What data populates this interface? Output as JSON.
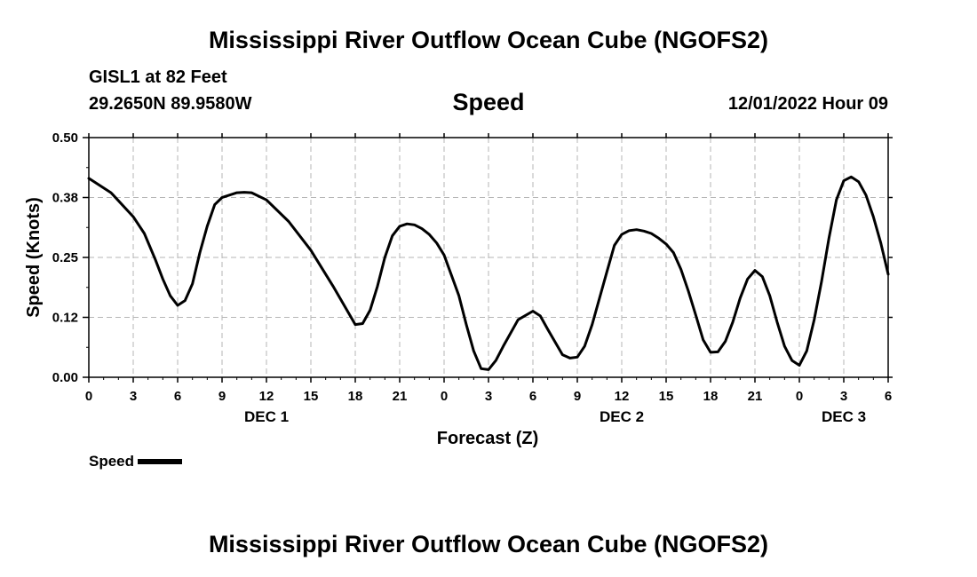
{
  "header": {
    "title": "Mississippi River Outflow Ocean Cube (NGOFS2)",
    "station": "GISL1 at 82 Feet",
    "coordinates": "29.2650N  89.9580W",
    "variable": "Speed",
    "run_time": "12/01/2022 Hour 09"
  },
  "legend": {
    "label": "Speed"
  },
  "footer": {
    "title": "Mississippi River Outflow Ocean Cube (NGOFS2)"
  },
  "chart_data": {
    "type": "line",
    "title": "Speed",
    "xlabel": "Forecast (Z)",
    "ylabel": "Speed (Knots)",
    "xlim": [
      0,
      54
    ],
    "ylim": [
      0,
      0.5
    ],
    "grid": true,
    "legend_position": "bottom-left",
    "x_ticks": [
      0,
      3,
      6,
      9,
      12,
      15,
      18,
      21,
      24,
      27,
      30,
      33,
      36,
      39,
      42,
      45,
      48,
      51,
      54
    ],
    "x_tick_labels": [
      "0",
      "3",
      "6",
      "9",
      "12",
      "15",
      "18",
      "21",
      "0",
      "3",
      "6",
      "9",
      "12",
      "15",
      "18",
      "21",
      "0",
      "3",
      "6"
    ],
    "y_ticks": [
      0,
      0.125,
      0.25,
      0.375,
      0.5
    ],
    "y_tick_labels": [
      "0.00",
      "0.12",
      "0.25",
      "0.38",
      "0.50"
    ],
    "day_labels": [
      {
        "x": 12,
        "label": "DEC 1"
      },
      {
        "x": 36,
        "label": "DEC 2"
      },
      {
        "x": 51,
        "label": "DEC 3"
      }
    ],
    "series": [
      {
        "name": "Speed",
        "color": "#000000",
        "x": [
          0,
          1.5,
          3,
          3.75,
          4.5,
          5,
          5.5,
          6,
          6.5,
          7,
          7.5,
          8,
          8.5,
          9,
          10,
          10.5,
          11,
          12,
          13.5,
          15,
          16.5,
          18,
          18.5,
          19,
          19.5,
          20,
          20.5,
          21,
          21.5,
          22,
          22.5,
          23,
          23.5,
          24,
          25,
          25.5,
          26,
          26.5,
          27,
          27.5,
          28,
          29,
          30,
          30.5,
          31,
          32,
          32.5,
          33,
          33.5,
          34,
          34.5,
          35,
          35.5,
          36,
          36.5,
          37,
          37.5,
          38,
          38.5,
          39,
          39.5,
          40,
          40.5,
          41,
          41.5,
          42,
          42.5,
          43,
          43.5,
          44,
          44.5,
          45,
          45.5,
          46,
          46.5,
          47,
          47.5,
          48,
          48.5,
          49,
          49.5,
          50,
          50.5,
          51,
          51.5,
          52,
          52.5,
          53,
          53.5,
          54
        ],
        "values": [
          0.415,
          0.385,
          0.335,
          0.3,
          0.245,
          0.205,
          0.17,
          0.15,
          0.16,
          0.195,
          0.26,
          0.315,
          0.36,
          0.375,
          0.385,
          0.386,
          0.385,
          0.37,
          0.325,
          0.265,
          0.19,
          0.11,
          0.112,
          0.14,
          0.19,
          0.25,
          0.295,
          0.315,
          0.32,
          0.318,
          0.31,
          0.298,
          0.28,
          0.255,
          0.17,
          0.11,
          0.055,
          0.018,
          0.016,
          0.035,
          0.065,
          0.12,
          0.138,
          0.128,
          0.1,
          0.047,
          0.04,
          0.042,
          0.065,
          0.11,
          0.165,
          0.22,
          0.275,
          0.298,
          0.306,
          0.308,
          0.305,
          0.3,
          0.29,
          0.278,
          0.26,
          0.225,
          0.18,
          0.13,
          0.078,
          0.052,
          0.053,
          0.075,
          0.115,
          0.165,
          0.205,
          0.223,
          0.21,
          0.17,
          0.115,
          0.065,
          0.035,
          0.025,
          0.055,
          0.12,
          0.2,
          0.29,
          0.37,
          0.41,
          0.418,
          0.408,
          0.38,
          0.335,
          0.28,
          0.215
        ]
      }
    ]
  }
}
